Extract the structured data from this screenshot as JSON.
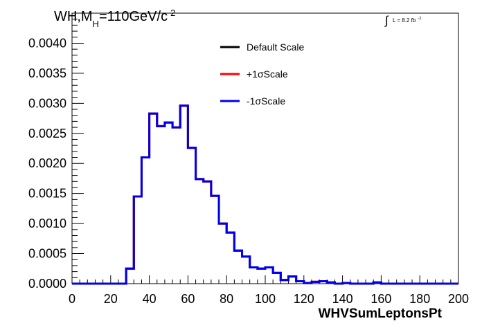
{
  "chart_data": {
    "type": "line",
    "subtype": "step-histogram",
    "title": {
      "main": "WH,M",
      "subscript": "H",
      "rest": "=110GeV/c",
      "superscript": "2"
    },
    "luminosity": {
      "symbol": "∫",
      "text": "L = 8.2 fb",
      "exponent": "-1"
    },
    "xlabel": "WHVSumLeptonsPt",
    "ylabel": "",
    "xlim": [
      0,
      200
    ],
    "ylim": [
      0,
      0.0045
    ],
    "x_ticks": [
      0,
      20,
      40,
      60,
      80,
      100,
      120,
      140,
      160,
      180,
      200
    ],
    "x_tick_labels": [
      "0",
      "20",
      "40",
      "60",
      "80",
      "100",
      "120",
      "140",
      "160",
      "180",
      "200"
    ],
    "y_ticks": [
      0,
      0.0005,
      0.001,
      0.0015,
      0.002,
      0.0025,
      0.003,
      0.0035,
      0.004
    ],
    "y_tick_labels": [
      "0.0000",
      "0.0005",
      "0.0010",
      "0.0015",
      "0.0020",
      "0.0025",
      "0.0030",
      "0.0035",
      "0.0040"
    ],
    "grid": false,
    "legend_position": "top-center",
    "bin_edges": [
      0,
      4,
      8,
      12,
      16,
      20,
      24,
      28,
      32,
      36,
      40,
      44,
      48,
      52,
      56,
      60,
      64,
      68,
      72,
      76,
      80,
      84,
      88,
      92,
      96,
      100,
      104,
      108,
      112,
      116,
      120,
      124,
      128,
      132,
      136,
      140,
      144,
      148,
      152,
      156,
      160,
      164,
      168,
      172,
      176,
      180,
      184,
      188,
      192,
      196,
      200
    ],
    "series": [
      {
        "name": "Default Scale",
        "color": "#000000",
        "values": [
          0,
          0,
          0,
          0,
          0,
          0,
          0,
          0.00025,
          0.00145,
          0.0021,
          0.00283,
          0.00262,
          0.00268,
          0.0026,
          0.00296,
          0.00226,
          0.00174,
          0.0017,
          0.00146,
          0.001,
          0.00085,
          0.00055,
          0.00045,
          0.00027,
          0.00025,
          0.00027,
          0.00018,
          6e-05,
          0.00012,
          4e-05,
          1e-05,
          3e-05,
          4e-05,
          2e-05,
          0.0,
          1e-05,
          0.0,
          0.0,
          0.0,
          2e-05,
          0.0,
          0.0,
          0.0,
          0.0,
          0.0,
          0.0,
          0.0,
          0.0,
          0.0,
          0.0
        ]
      },
      {
        "name": "+1σScale",
        "color": "#ff0000",
        "values": [
          0,
          0,
          0,
          0,
          0,
          0,
          0,
          0.00025,
          0.00145,
          0.0021,
          0.00283,
          0.00262,
          0.00268,
          0.0026,
          0.00296,
          0.00226,
          0.00174,
          0.0017,
          0.00146,
          0.001,
          0.00085,
          0.00055,
          0.00045,
          0.00027,
          0.00025,
          0.00027,
          0.00018,
          6e-05,
          0.00012,
          4e-05,
          1e-05,
          3e-05,
          4e-05,
          2e-05,
          0.0,
          1e-05,
          0.0,
          0.0,
          0.0,
          2e-05,
          0.0,
          0.0,
          0.0,
          0.0,
          0.0,
          0.0,
          0.0,
          0.0,
          0.0,
          0.0
        ]
      },
      {
        "name": "-1σScale",
        "color": "#0000ee",
        "values": [
          0,
          0,
          0,
          0,
          0,
          0,
          0,
          0.00025,
          0.00145,
          0.0021,
          0.00283,
          0.00262,
          0.00268,
          0.0026,
          0.00296,
          0.00226,
          0.00174,
          0.0017,
          0.00146,
          0.001,
          0.00085,
          0.00055,
          0.00045,
          0.00027,
          0.00025,
          0.00027,
          0.00018,
          6e-05,
          0.00012,
          4e-05,
          1e-05,
          3e-05,
          4e-05,
          2e-05,
          0.0,
          1e-05,
          0.0,
          0.0,
          0.0,
          2e-05,
          0.0,
          0.0,
          0.0,
          0.0,
          0.0,
          0.0,
          0.0,
          0.0,
          0.0,
          0.0
        ]
      }
    ]
  }
}
